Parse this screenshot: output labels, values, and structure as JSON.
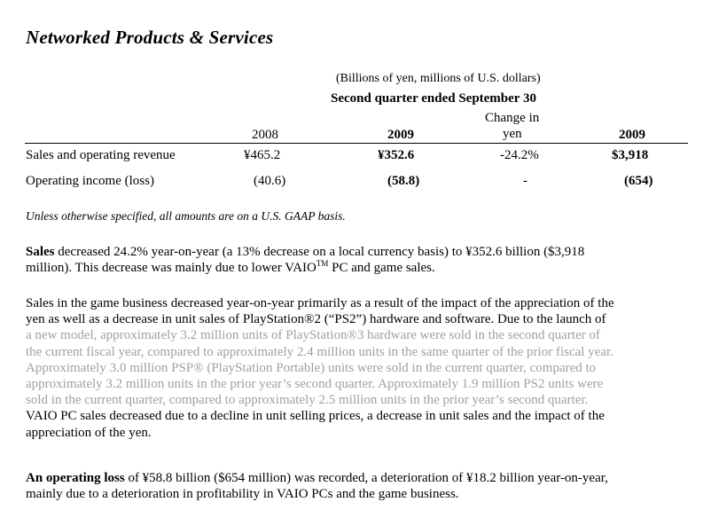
{
  "title": "Networked Products & Services",
  "table": {
    "units_note": "(Billions of yen, millions of U.S. dollars)",
    "period": "Second quarter ended September 30",
    "columns": {
      "c2008": "2008",
      "c2009": "2009",
      "change_line1": "Change in",
      "change_line2": "yen",
      "c2009usd": "2009"
    },
    "rows": [
      {
        "label": "Sales and operating revenue",
        "v2008": "¥465.2",
        "v2009": "¥352.6",
        "change": "-24.2%",
        "usd": "$3,918"
      },
      {
        "label": "Operating income (loss)",
        "v2008": "(40.6)",
        "v2009": "(58.8)",
        "change": "-",
        "usd": "(654)"
      }
    ]
  },
  "gaap_note": "Unless otherwise specified, all amounts are on a U.S. GAAP basis.",
  "para1": {
    "bold_lead": "Sales",
    "line1_rest": " decreased 24.2% year-on-year (a 13% decrease on a local currency basis) to ¥352.6 billion ($3,918",
    "line2_pre": "million).  This decrease was mainly due to lower VAIO",
    "tm": "TM",
    "line2_post": " PC and game sales."
  },
  "para2": {
    "lines": [
      "Sales in the game business decreased year-on-year primarily as a result of the impact of the appreciation of the",
      "yen as well as a decrease in unit sales of PlayStation®2 (“PS2”) hardware and software.  Due to the launch of"
    ],
    "gray_lines": [
      "a new model, approximately 3.2 million units of PlayStation®3 hardware were sold in the second quarter of",
      "the current fiscal year, compared to approximately 2.4 million units in the same quarter of the prior fiscal year.",
      "Approximately 3.0 million PSP® (PlayStation Portable) units were sold in the current quarter, compared to",
      "approximately 3.2 million units in the prior year’s second quarter.  Approximately 1.9 million PS2 units were",
      "sold in the current quarter, compared to approximately 2.5 million  units in the prior year’s second quarter."
    ],
    "tail_lines": [
      "VAIO PC sales decreased due to a decline in unit selling prices, a decrease in unit sales and the impact of the",
      "appreciation of the yen."
    ]
  },
  "para3": {
    "bold_lead": "An operating loss",
    "line1_rest": " of ¥58.8 billion ($654 million) was recorded, a deterioration of ¥18.2 billion year-on-year,",
    "line2": "mainly due to a deterioration in profitability in VAIO PCs and the game business."
  }
}
